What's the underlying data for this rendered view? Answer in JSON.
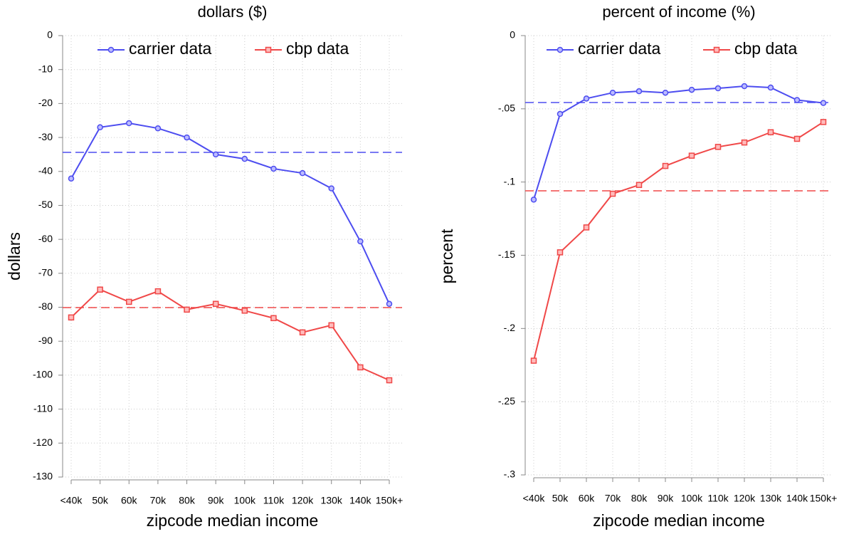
{
  "chart_data": [
    {
      "type": "line",
      "title": "dollars ($)",
      "y_label": "dollars",
      "x_label": "zipcode median income",
      "categories": [
        "<40k",
        "50k",
        "60k",
        "70k",
        "80k",
        "90k",
        "100k",
        "110k",
        "120k",
        "130k",
        "140k",
        "150k+"
      ],
      "ylim": [
        -130,
        0
      ],
      "yticks": [
        0,
        -10,
        -20,
        -30,
        -40,
        -50,
        -60,
        -70,
        -80,
        -90,
        -100,
        -110,
        -120,
        -130
      ],
      "grid": true,
      "legend": "top",
      "series": [
        {
          "name": "carrier data",
          "color": "#4d4df0",
          "marker": "circle",
          "mean": -34.4,
          "values": [
            -42.1,
            -27,
            -25.8,
            -27.3,
            -30,
            -35,
            -36.3,
            -39.2,
            -40.5,
            -45,
            -60.6,
            -79
          ]
        },
        {
          "name": "cbp data",
          "color": "#f04848",
          "marker": "square",
          "mean": -80.1,
          "values": [
            -83,
            -74.8,
            -78.4,
            -75.3,
            -80.7,
            -79,
            -81,
            -83.2,
            -87.4,
            -85.3,
            -97.7,
            -101.5
          ]
        }
      ]
    },
    {
      "type": "line",
      "title": "percent of income (%)",
      "y_label": "percent",
      "x_label": "zipcode median income",
      "categories": [
        "<40k",
        "50k",
        "60k",
        "70k",
        "80k",
        "90k",
        "100k",
        "110k",
        "120k",
        "130k",
        "140k",
        "150k+"
      ],
      "ylim": [
        -0.3,
        0
      ],
      "yticks": [
        0,
        {
          "value": -0.05,
          "label": "-.05"
        },
        {
          "value": -0.1,
          "label": "-.1"
        },
        {
          "value": -0.15,
          "label": "-.15"
        },
        {
          "value": -0.2,
          "label": "-.2"
        },
        {
          "value": -0.25,
          "label": "-.25"
        },
        {
          "value": -0.3,
          "label": "-.3"
        }
      ],
      "grid": true,
      "legend": "top",
      "series": [
        {
          "name": "carrier data",
          "color": "#4d4df0",
          "marker": "circle",
          "mean": -0.0457,
          "values": [
            -0.112,
            -0.0535,
            -0.043,
            -0.039,
            -0.038,
            -0.039,
            -0.037,
            -0.036,
            -0.0345,
            -0.0355,
            -0.044,
            -0.046
          ]
        },
        {
          "name": "cbp data",
          "color": "#f04848",
          "marker": "square",
          "mean": -0.106,
          "values": [
            -0.222,
            -0.148,
            -0.131,
            -0.108,
            -0.102,
            -0.089,
            -0.082,
            -0.076,
            -0.073,
            -0.066,
            -0.0705,
            -0.059
          ]
        }
      ]
    }
  ]
}
